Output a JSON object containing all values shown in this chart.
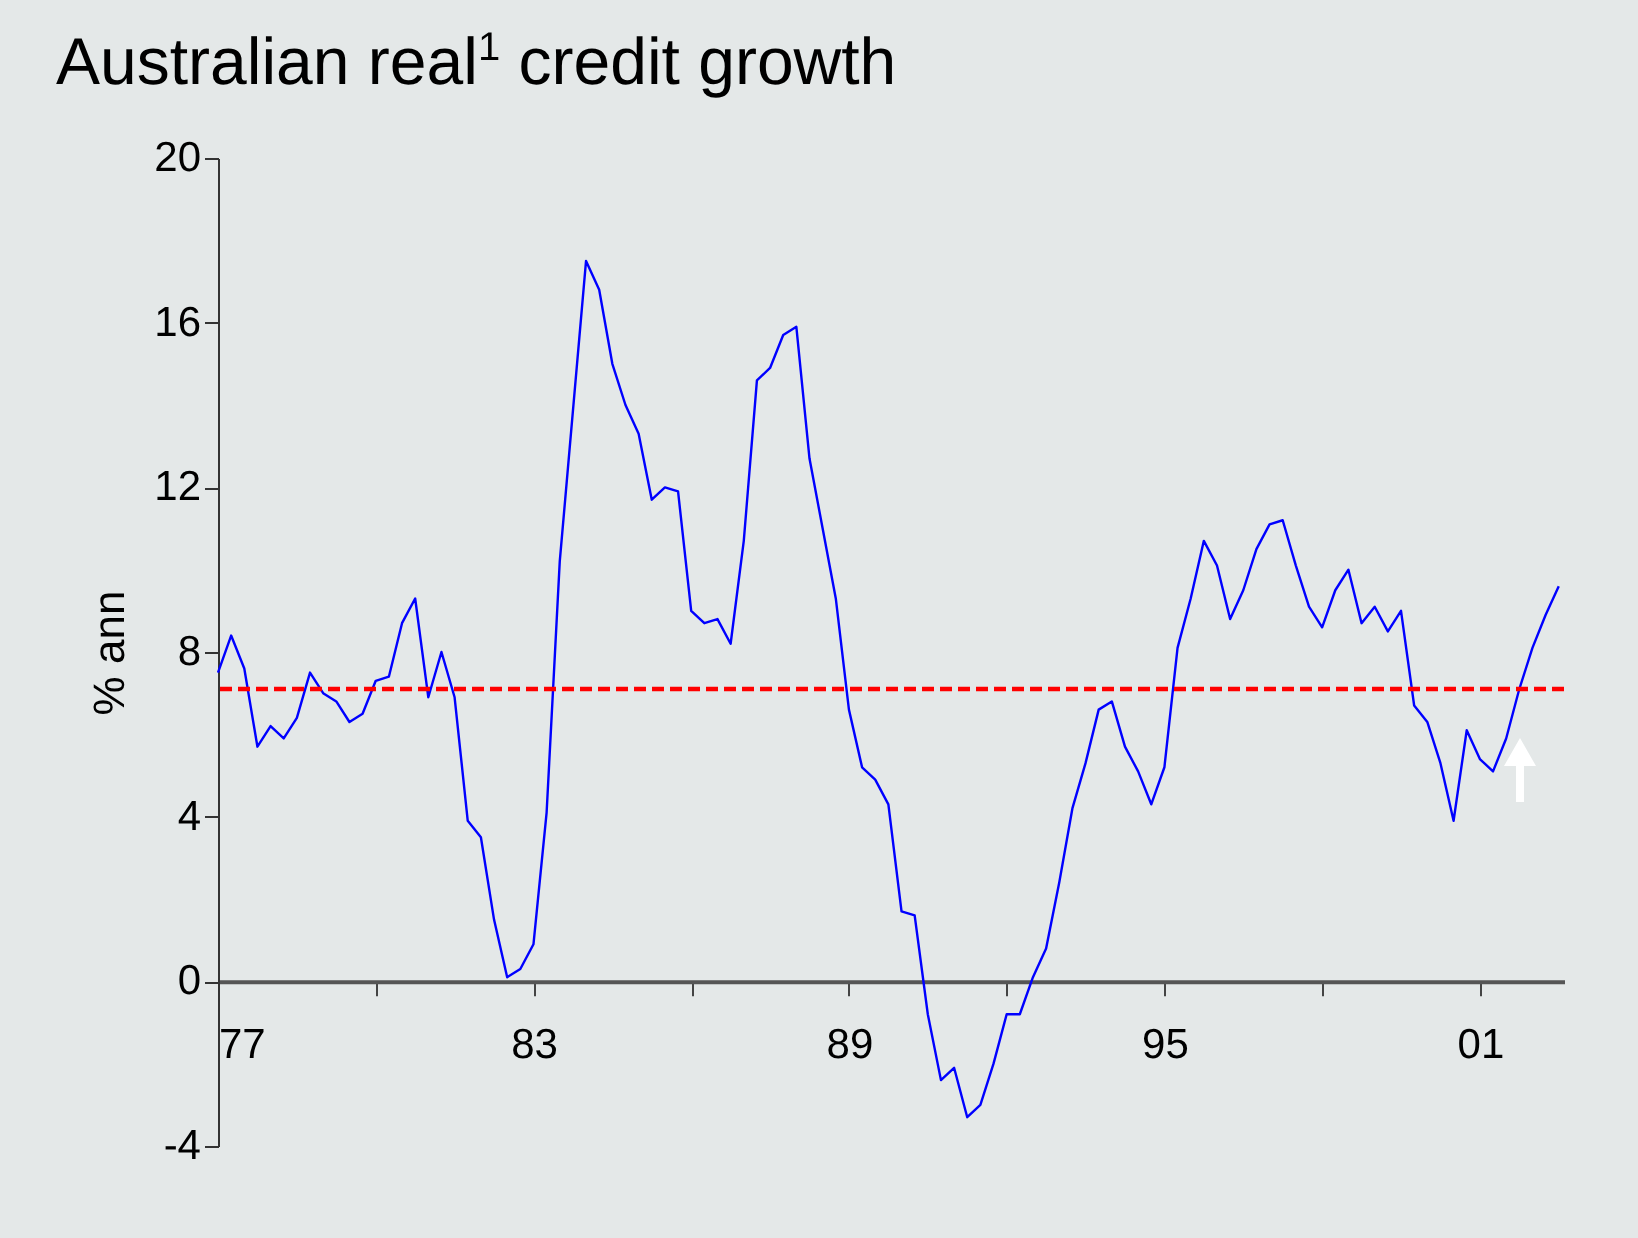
{
  "chart_data": {
    "type": "line",
    "title": "Australian real$^{1}$ credit growth",
    "ylabel": "% ann",
    "x": [
      1977,
      1977.25,
      1977.5,
      1977.75,
      1978,
      1978.25,
      1978.5,
      1978.75,
      1979,
      1979.25,
      1979.5,
      1979.75,
      1980,
      1980.25,
      1980.5,
      1980.75,
      1981,
      1981.25,
      1981.5,
      1981.75,
      1982,
      1982.25,
      1982.5,
      1982.75,
      1983,
      1983.25,
      1983.5,
      1984,
      1984.25,
      1984.5,
      1984.75,
      1985,
      1985.25,
      1985.5,
      1985.75,
      1986,
      1986.25,
      1986.5,
      1986.75,
      1987,
      1987.25,
      1987.5,
      1987.75,
      1988,
      1988.25,
      1988.5,
      1988.75,
      1989,
      1989.25,
      1989.5,
      1989.75,
      1990,
      1990.25,
      1990.5,
      1990.75,
      1991,
      1991.25,
      1991.5,
      1991.75,
      1992,
      1992.25,
      1992.5,
      1992.75,
      1993,
      1993.25,
      1993.5,
      1993.75,
      1994,
      1994.25,
      1994.5,
      1994.75,
      1995,
      1995.25,
      1995.5,
      1995.75,
      1996,
      1996.25,
      1996.5,
      1996.75,
      1997,
      1997.25,
      1997.5,
      1997.75,
      1998,
      1998.25,
      1998.5,
      1998.75,
      1999,
      1999.25,
      1999.5,
      1999.75,
      2000,
      2000.25,
      2000.5,
      2000.75,
      2001,
      2001.25,
      2001.5,
      2001.75,
      2002,
      2002.25,
      2002.5
    ],
    "series": [
      {
        "color": "#0000ff",
        "values": [
          7.5,
          8.4,
          7.6,
          5.7,
          6.2,
          5.9,
          6.4,
          7.5,
          7.0,
          6.8,
          6.3,
          6.5,
          7.3,
          7.4,
          8.7,
          9.3,
          6.9,
          8.0,
          6.9,
          3.9,
          3.5,
          1.5,
          0.1,
          0.3,
          0.9,
          4.1,
          10.2,
          17.5,
          16.8,
          15.0,
          14.0,
          13.3,
          11.7,
          12.0,
          11.9,
          9.0,
          8.7,
          8.8,
          8.2,
          10.7,
          14.6,
          14.9,
          15.7,
          15.9,
          12.7,
          11.0,
          9.3,
          6.6,
          5.2,
          4.9,
          4.3,
          1.7,
          1.6,
          -0.8,
          -2.4,
          -2.1,
          -3.3,
          -3.0,
          -2.0,
          -0.8,
          -0.8,
          0.1,
          0.8,
          2.4,
          4.2,
          5.3,
          6.6,
          6.8,
          5.7,
          5.1,
          4.3,
          5.2,
          8.1,
          9.3,
          10.7,
          10.1,
          8.8,
          9.5,
          10.5,
          11.1,
          11.2,
          10.1,
          9.1,
          8.6,
          9.5,
          10.0,
          8.7,
          9.1,
          8.5,
          9.0,
          6.7,
          6.3,
          5.3,
          3.9,
          6.1,
          5.4,
          5.1,
          5.9,
          7.1,
          8.1,
          8.9,
          9.6
        ]
      }
    ],
    "xlim": [
      1977,
      2002.6
    ],
    "xticks": [
      {
        "value": 1977,
        "label": "77"
      },
      {
        "value": 1980,
        "label": null
      },
      {
        "value": 1983,
        "label": "83"
      },
      {
        "value": 1986,
        "label": null
      },
      {
        "value": 1989,
        "label": "89"
      },
      {
        "value": 1992,
        "label": null
      },
      {
        "value": 1995,
        "label": "95"
      },
      {
        "value": 1998,
        "label": null
      },
      {
        "value": 2001,
        "label": "01"
      }
    ],
    "ylim": [
      -4,
      20
    ],
    "yticks": [
      -4,
      0,
      4,
      8,
      12,
      16,
      20
    ],
    "ref_lines": [
      {
        "axis": "y",
        "value": 7.1,
        "color": "#ff0000",
        "line_style": "dashed"
      }
    ],
    "grid": false,
    "marker": "none",
    "line_style": "solid"
  }
}
